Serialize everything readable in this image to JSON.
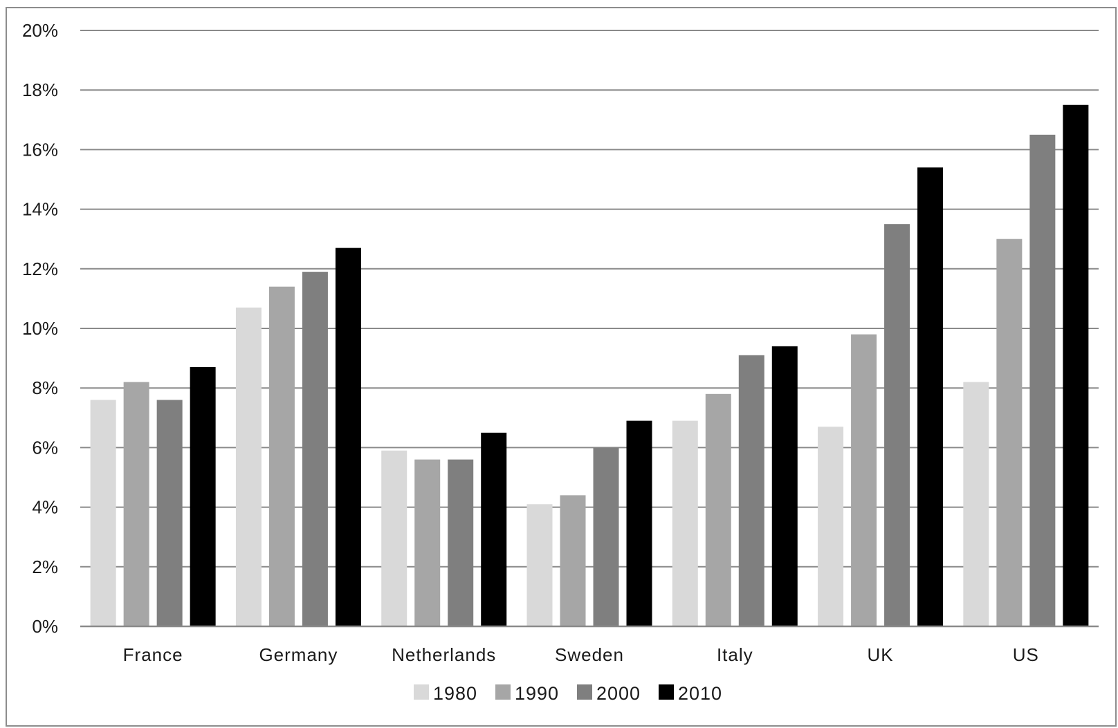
{
  "chart_data": {
    "type": "bar",
    "title": "",
    "xlabel": "",
    "ylabel": "",
    "categories": [
      "France",
      "Germany",
      "Netherlands",
      "Sweden",
      "Italy",
      "UK",
      "US"
    ],
    "series": [
      {
        "name": "1980",
        "color": "#d9d9d9",
        "values": [
          7.6,
          10.7,
          5.9,
          4.1,
          6.9,
          6.7,
          8.2
        ]
      },
      {
        "name": "1990",
        "color": "#a6a6a6",
        "values": [
          8.2,
          11.4,
          5.6,
          4.4,
          7.8,
          9.8,
          13.0
        ]
      },
      {
        "name": "2000",
        "color": "#7f7f7f",
        "values": [
          7.6,
          11.9,
          5.6,
          6.0,
          9.1,
          13.5,
          16.5
        ]
      },
      {
        "name": "2010",
        "color": "#000000",
        "values": [
          8.7,
          12.7,
          6.5,
          6.9,
          9.4,
          15.4,
          17.5
        ]
      }
    ],
    "ylim": [
      0,
      20
    ],
    "yticks": [
      "0%",
      "2%",
      "4%",
      "6%",
      "8%",
      "10%",
      "12%",
      "14%",
      "16%",
      "18%",
      "20%"
    ],
    "grid": true,
    "legend_position": "bottom"
  }
}
